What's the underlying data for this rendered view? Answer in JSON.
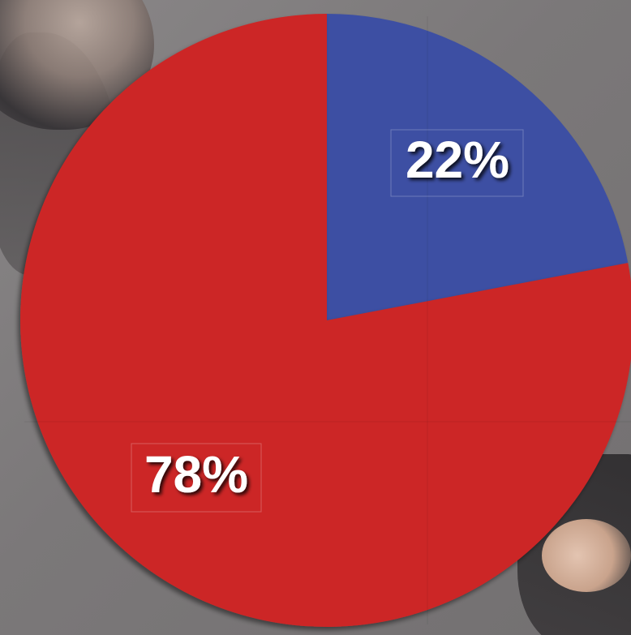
{
  "chart_data": {
    "type": "pie",
    "slices": [
      {
        "label": "22%",
        "value": 22,
        "color": "#3d4fa3"
      },
      {
        "label": "78%",
        "value": 78,
        "color": "#cc2626"
      }
    ],
    "start_angle_deg": 0,
    "direction": "clockwise",
    "legend": "none",
    "title": ""
  }
}
